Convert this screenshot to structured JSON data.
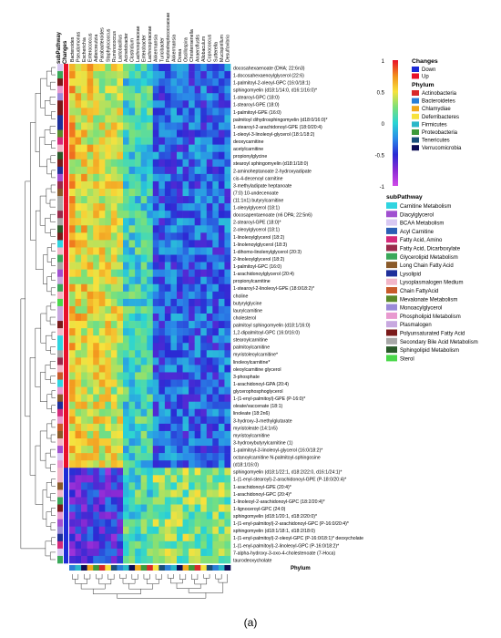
{
  "figure": {
    "caption": "(a)"
  },
  "chart_data": {
    "type": "heatmap",
    "columns": [
      "Bacteroides",
      "Pseudomonas",
      "Escherichia",
      "Enterococcus",
      "Adlercreutzia",
      "Parabacteroides",
      "Staphylococcus",
      "Ruminococcus",
      "Lactobacillus",
      "Acinetobacter",
      "Clostridium",
      "Lachnospiraceae",
      "Enterobacter",
      "Lachnospiraceae",
      "Akkermansia",
      "Turicibacter",
      "Peptostreptococcaceae",
      "Akkermansia",
      "Dorea",
      "Oscillospira",
      "Christensenella",
      "Anaeroflustis",
      "Allobaculum",
      "Coprococcus",
      "Sutterella",
      "Mucispirillum",
      "Desulfovibrio"
    ],
    "rows": [
      "docosahexaenoate (DHA; 22:6n3)",
      "1-docosahexaenoylglycerol (22:6)",
      "1-palmitoyl-2-oleoyl-GPC (16:0/18:1)",
      "sphingomyelin (d18:1/14:0, d16:1/16:0)*",
      "1-stearoyl-GPC (18:0)",
      "1-stearoyl-GPE (18:0)",
      "1-palmitoyl-GPE (16:0)",
      "palmitoyl dihydrosphingomyelin (d18:0/16:0)*",
      "1-stearoyl-2-arachidonoyl-GPE (18:0/20:4)",
      "1-oleoyl-3-linoleoyl-glycerol (18:1/18:2)",
      "deoxycarnitine",
      "acetylcarnitine",
      "propionylglycine",
      "stearoyl sphingomyelin (d18:1/18:0)",
      "2-aminoheptanoate 2-hydroxyadipate",
      "cis-4-decenoyl carnitine",
      "3-methyladipate heptanoate",
      "(7:0) 10-undecenoate",
      "(11:1n1) butyrylcarnitine",
      "1-oleoylglycerol (18:1)",
      "docosapentaenoate (n6 DPA; 22:5n6)",
      "2-stearoyl-GPE (18:0)*",
      "2-oleoylglycerol (18:1)",
      "1-linoleoylglycerol (18:2)",
      "1-linolenoylglycerol (18:3)",
      "1-dihomo-linolenylglycerol (20:3)",
      "2-linoleoylglycerol (18:2)",
      "1-palmitoyl-GPC (16:0)",
      "1-arachidonoylglycerol (20:4)",
      "propionylcarnitine",
      "1-stearoyl-2-linoleoyl-GPE (18:0/18:2)*",
      "choline",
      "butyrylglycine",
      "laurylcarnitine",
      "cholesterol",
      "palmitoyl sphingomyelin (d18:1/16:0)",
      "1,2-dipalmitoyl-GPC (16:0/16:0)",
      "stearoylcarnitine",
      "palmitoylcarnitine",
      "myristoleoylcarnitine*",
      "linoleoylcarnitine*",
      "oleoylcarnitine glycerol",
      "3-phosphate",
      "1-arachidonoyl-GPA (20:4)",
      "glycerophosphoglycerol",
      "1-(1-enyl-palmitoyl)-GPE (P-16:0)*",
      "oleate/vaccenate (18:1)",
      "linoleate (18:2n6)",
      "3-hydroxy-3-methylglutarate",
      "myristoleate (14:1n5)",
      "myristoylcarnitine",
      "3-hydroxybutyrylcarnitine (1)",
      "1-palmitoyl-3-linoleoyl-glycerol (16:0/18:2)*",
      "octanoylcarnitine N-palmitoyl-sphingosine",
      "(d18:1/16:0)",
      "sphingomyelin (d18:1/22:1, d18:2/22:0, d16:1/24:1)*",
      "1-(1-enyl-stearoyl)-2-arachidonoyl-GPE (P-18:0/20:4)*",
      "1-arachidonoyl-GPE (20:4)*",
      "1-arachidonoyl-GPC (20:4)*",
      "1-linoleoyl-2-arachidonoyl-GPC (18:2/20:4)*",
      "1-lignoceroyl-GPC (24:0)",
      "sphingomyelin (d18:1/20:1, d18:2/20:0)*",
      "1-(1-enyl-palmitoyl)-2-arachidonoyl-GPC (P-16:0/20:4)*",
      "sphingomyelin (d18:1/18:1, d18:2/18:0)",
      "1-(1-enyl-palmitoyl)-2-oleoyl-GPC (P-16:0/18:1)* deoxycholate",
      "1-(1-enyl-palmitoyl)-2-linoleoyl-GPC (P-16:0/18:2)*",
      "7-alpha-hydroxy-3-oxo-4-cholestenoate (7-Hoca)",
      "taurodeoxycholate"
    ],
    "values_description_range": [
      -1,
      1
    ],
    "colorbar": {
      "max_label": "1",
      "mid_label": "0",
      "min_label": "-1",
      "ticks": [
        "1",
        "0.5",
        "0",
        "-0.5",
        "-1"
      ]
    },
    "row_annotation_title": "subPathway",
    "changes_title": "Changes",
    "changes_header": "Changes",
    "phylum_bar_label": "Phylum"
  },
  "legend": {
    "changes": {
      "title": "Changes",
      "items": [
        {
          "label": "Down",
          "color": "#1d2bd6"
        },
        {
          "label": "Up",
          "color": "#e8102a"
        }
      ]
    },
    "phylum": {
      "title": "Phylum",
      "items": [
        {
          "label": "Actinobacteria",
          "color": "#d8292a"
        },
        {
          "label": "Bacteroidetes",
          "color": "#2a7fd8"
        },
        {
          "label": "Chlamydiae",
          "color": "#f2a81c"
        },
        {
          "label": "Deferribacteres",
          "color": "#f7e23d"
        },
        {
          "label": "Firmicutes",
          "color": "#2bb7c9"
        },
        {
          "label": "Proteobacteria",
          "color": "#3d9a3a"
        },
        {
          "label": "Tenericutes",
          "color": "#1a4f7a"
        },
        {
          "label": "Verrucomicrobia",
          "color": "#0d0d55"
        }
      ]
    },
    "subpathway": {
      "title": "subPathway",
      "items": [
        {
          "label": "Carnitine Metabolism",
          "color": "#30d4e0"
        },
        {
          "label": "Diacylglycerol",
          "color": "#a04fd0"
        },
        {
          "label": "BCAA Metabolism",
          "color": "#d8c8f2"
        },
        {
          "label": "Acyl Carnitine",
          "color": "#2b5fb5"
        },
        {
          "label": "Fatty Acid, Amino",
          "color": "#d42a7a"
        },
        {
          "label": "Fatty Acid, Dicarboxylate",
          "color": "#9a2a4a"
        },
        {
          "label": "Glycerolipid Metabolism",
          "color": "#3aa85a"
        },
        {
          "label": "Long Chain Fatty Acid",
          "color": "#8a5a2a"
        },
        {
          "label": "Lysolipid",
          "color": "#1f2f9a"
        },
        {
          "label": "Lysoplasmalogen Medium",
          "color": "#f2b6c8"
        },
        {
          "label": "Chain FattyAcid",
          "color": "#c85a2a"
        },
        {
          "label": "Mevalonate Metabolism",
          "color": "#5a8a2a"
        },
        {
          "label": "Monoacylglycerol",
          "color": "#9a8ad8"
        },
        {
          "label": "Phospholipid Metabolism",
          "color": "#e89ad0"
        },
        {
          "label": "Plasmalogen",
          "color": "#c8a8e0"
        },
        {
          "label": "Polyunsaturated Fatty Acid",
          "color": "#7a1a1a"
        },
        {
          "label": "Secondary Bile Acid Metabolism",
          "color": "#a8a8a8"
        },
        {
          "label": "Sphingolipid Metabolism",
          "color": "#2a5a2a"
        },
        {
          "label": "Sterol",
          "color": "#4ad84a"
        }
      ]
    }
  },
  "colors": {
    "colorbar_stops": [
      "#e8102a",
      "#f2901c",
      "#f7e23d",
      "#7ae07a",
      "#2ad4d4",
      "#2a8ae8",
      "#2a2ad4",
      "#8a2ad4",
      "#d04ae8"
    ]
  }
}
